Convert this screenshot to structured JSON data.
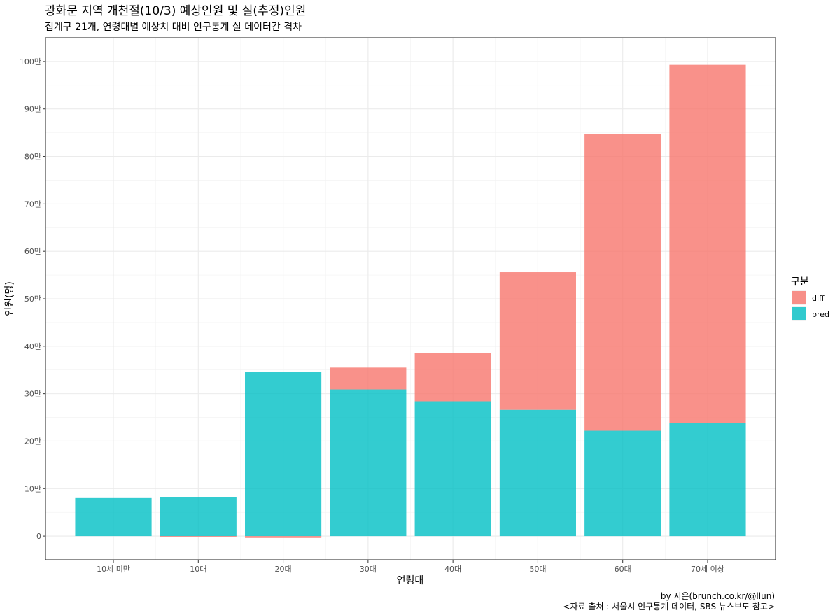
{
  "chart_data": {
    "type": "bar",
    "stacked": true,
    "title": "광화문 지역 개천절(10/3) 예상인원 및 실(추정)인원",
    "subtitle": "집계구 21개, 연령대별 예상치 대비 인구통계 실 데이터간 격차",
    "xlabel": "연령대",
    "ylabel": "인원(명)",
    "categories": [
      "10세 미만",
      "10대",
      "20대",
      "30대",
      "40대",
      "50대",
      "60대",
      "70세 이상"
    ],
    "ylim": [
      -50000,
      1050000
    ],
    "yticks": [
      0,
      100000,
      200000,
      300000,
      400000,
      500000,
      600000,
      700000,
      800000,
      900000,
      1000000
    ],
    "ytick_labels": [
      "0",
      "10만",
      "20만",
      "30만",
      "40만",
      "50만",
      "60만",
      "70만",
      "80만",
      "90만",
      "100만"
    ],
    "series": [
      {
        "name": "pred",
        "color": "#00BFC4",
        "values": [
          80000,
          82000,
          346000,
          309000,
          284000,
          266000,
          222000,
          239000
        ]
      },
      {
        "name": "diff",
        "color": "#F8766D",
        "values": [
          0,
          -2000,
          -4000,
          46000,
          101000,
          290000,
          626000,
          754000
        ]
      }
    ],
    "legend": {
      "title": "구분",
      "entries": [
        "diff",
        "pred"
      ],
      "placement": "right"
    },
    "grid": true,
    "captions": [
      "by 지은(brunch.co.kr/@llun)",
      "<자료 출처 : 서울시 인구통계 데이터, SBS 뉴스보도 참고>"
    ]
  }
}
